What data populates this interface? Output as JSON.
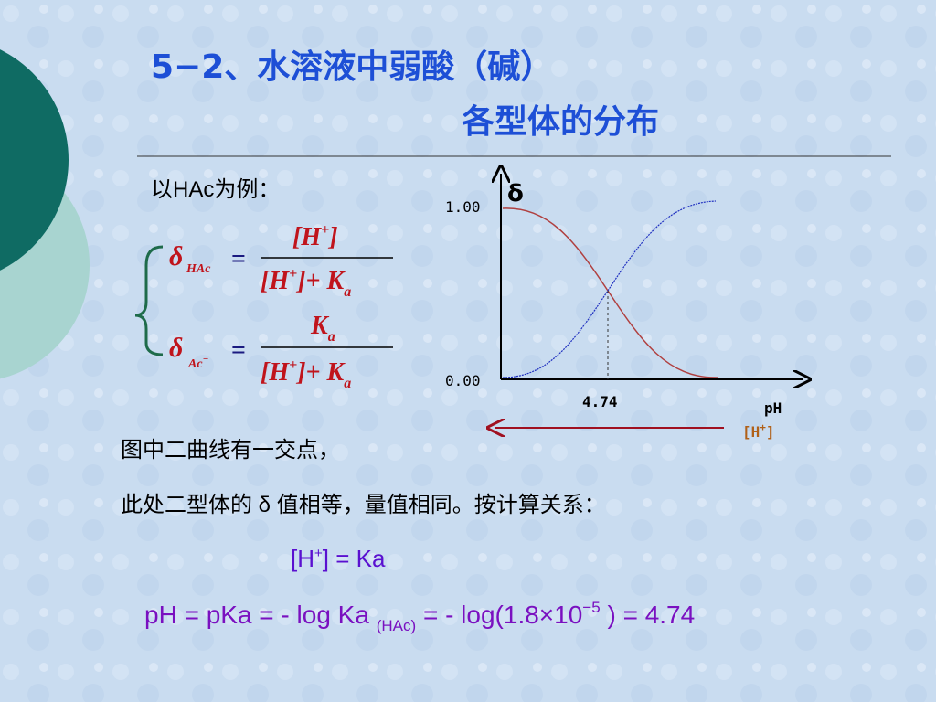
{
  "title": {
    "line1": "5−2、水溶液中弱酸（碱）",
    "line2": "各型体的分布"
  },
  "intro": "以HAc为例：",
  "formulas": [
    {
      "symbol": "δ",
      "subscript": "HAc",
      "equals": "=",
      "numerator": "[H",
      "numerator_sup": "+",
      "numerator_end": "]",
      "denominator": "[H",
      "denominator_sup": "+",
      "denominator_mid": "]+ K",
      "denominator_sub": "a"
    },
    {
      "symbol": "δ",
      "subscript": "Ac",
      "subscript_sup": "−",
      "equals": "=",
      "numerator": "K",
      "numerator_sub": "a",
      "denominator": "[H",
      "denominator_sup": "+",
      "denominator_mid": "]+ K",
      "denominator_sub": "a"
    }
  ],
  "figure": {
    "y_label": "δ",
    "y_top": "1.00",
    "y_bottom": "0.00",
    "x_mark": "4.74",
    "x_label": "pH",
    "arrow_label": "[H",
    "arrow_label_sup": "+",
    "arrow_label_end": "]"
  },
  "text": {
    "line1": "图中二曲线有一交点，",
    "line2": "此处二型体的 δ 值相等，量值相同。按计算关系：",
    "eq1": "[H",
    "eq1_sup": "+",
    "eq1_end": "] = Ka",
    "eq2": "pH = pKa = - log Ka ",
    "eq2_sub": "(HAc)",
    "eq2_mid": " = - log(1.8×10",
    "eq2_sup": "−5",
    "eq2_end": " ) = 4.74"
  }
}
